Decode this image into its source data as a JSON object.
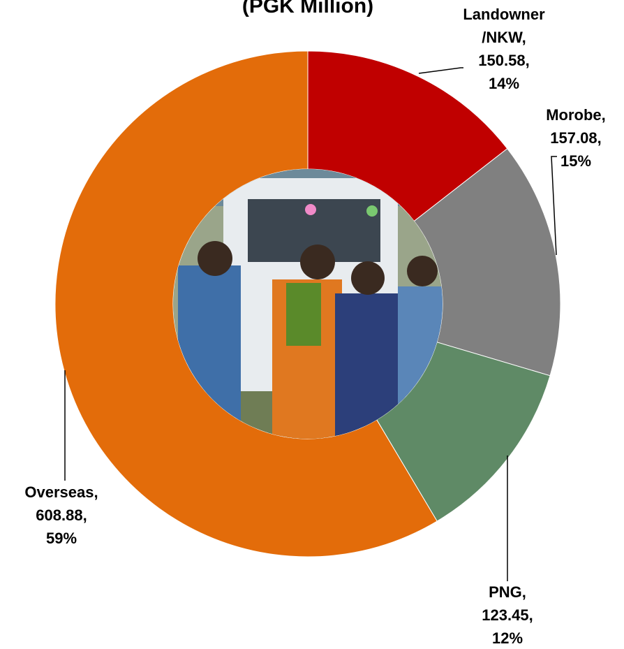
{
  "chart_data": {
    "type": "donut",
    "title": "(PGK Million)",
    "categories": [
      "Landowner /NKW",
      "Morobe",
      "PNG",
      "Overseas"
    ],
    "values": [
      150.58,
      157.08,
      123.45,
      608.88
    ],
    "colors": [
      "#c00000",
      "#808080",
      "#5f8a66",
      "#e36c0a"
    ],
    "label_lines": [
      [
        "Landowner",
        "/NKW,",
        "150.58,",
        "14%"
      ],
      [
        "Morobe,",
        "157.08,",
        "15%"
      ],
      [
        "PNG,",
        "123.45,",
        "12%"
      ],
      [
        "Overseas,",
        "608.88,",
        "59%"
      ]
    ]
  }
}
